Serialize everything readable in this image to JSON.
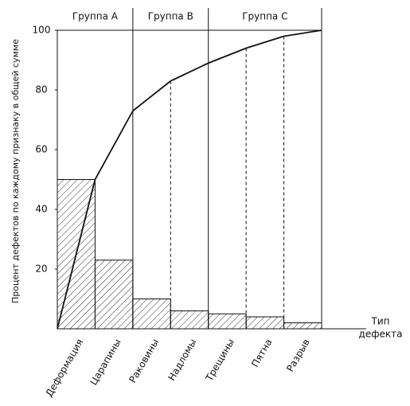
{
  "chart_data": {
    "type": "pareto",
    "y_label": "Процент дефектов по каждому признаку в общей сумме",
    "x_label": [
      "Тип",
      "дефекта"
    ],
    "groups": [
      "Группа A",
      "Группа B",
      "Группа C"
    ],
    "categories": [
      "Деформация",
      "Царапины",
      "Раковины",
      "Надломы",
      "Трещины",
      "Пятна",
      "Разрыв"
    ],
    "values": [
      50,
      23,
      10,
      6,
      5,
      4,
      2
    ],
    "ylim": [
      0,
      100
    ],
    "yticks": [
      20,
      40,
      60,
      80,
      100
    ]
  }
}
